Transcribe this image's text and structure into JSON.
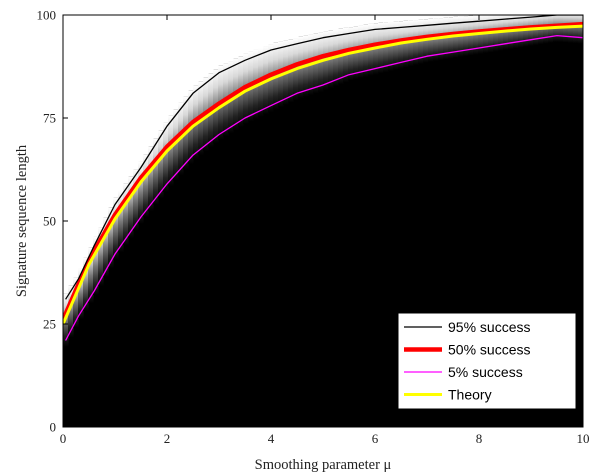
{
  "chart_data": {
    "type": "heatmap",
    "xlabel": "Smoothing parameter μ",
    "ylabel": "Signature sequence length",
    "xlim": [
      0,
      10
    ],
    "ylim": [
      0,
      100
    ],
    "xticks": [
      "0",
      "2",
      "4",
      "6",
      "8",
      "10"
    ],
    "yticks": [
      "0",
      "25",
      "50",
      "75",
      "100"
    ],
    "grid": false,
    "legend_position": "bottom-right",
    "background_color": "#000000",
    "series": [
      {
        "name": "95% success",
        "type": "line",
        "color": "#000000",
        "x": [
          0.05,
          0.3,
          0.6,
          1.0,
          1.5,
          2.0,
          2.5,
          3.0,
          3.5,
          4.0,
          4.5,
          5.0,
          5.5,
          6.0,
          6.5,
          7.0,
          7.5,
          8.0,
          8.5,
          9.0,
          9.5,
          10.0
        ],
        "y": [
          31,
          36,
          44,
          54,
          63,
          73,
          81,
          86,
          89,
          91.5,
          93,
          94.5,
          95.5,
          96.5,
          97,
          97.5,
          98,
          98.5,
          99,
          99.5,
          100,
          100
        ]
      },
      {
        "name": "50% success",
        "type": "line",
        "color": "#ff0000",
        "x": [
          0.0,
          0.5,
          1.0,
          1.5,
          2.0,
          2.5,
          3.0,
          3.5,
          4.0,
          4.5,
          5.0,
          5.5,
          6.0,
          6.5,
          7.0,
          7.5,
          8.0,
          8.5,
          9.0,
          9.5,
          10.0
        ],
        "y": [
          26,
          40.5,
          51.5,
          60.5,
          68,
          74,
          78.5,
          82.5,
          85.5,
          88,
          90,
          91.5,
          92.8,
          93.8,
          94.7,
          95.4,
          96,
          96.5,
          97,
          97.4,
          97.8
        ]
      },
      {
        "name": "5% success",
        "type": "line",
        "color": "#ff00ff",
        "x": [
          0.05,
          0.3,
          0.6,
          1.0,
          1.5,
          2.0,
          2.5,
          3.0,
          3.5,
          4.0,
          4.5,
          5.0,
          5.5,
          6.0,
          6.5,
          7.0,
          7.5,
          8.0,
          8.5,
          9.0,
          9.5,
          10.0
        ],
        "y": [
          21,
          27,
          33,
          42,
          51,
          59,
          66,
          71,
          75,
          78,
          81,
          83,
          85.5,
          87,
          88.5,
          90,
          91,
          92,
          93,
          94,
          95,
          94.5
        ]
      },
      {
        "name": "Theory",
        "type": "line",
        "color": "#ffff00",
        "x": [
          0.0,
          0.5,
          1.0,
          1.5,
          2.0,
          2.5,
          3.0,
          3.5,
          4.0,
          4.5,
          5.0,
          5.5,
          6.0,
          6.5,
          7.0,
          7.5,
          8.0,
          8.5,
          9.0,
          9.5,
          10.0
        ],
        "y": [
          25,
          39.5,
          50.5,
          59.5,
          67,
          73,
          77.5,
          81.5,
          84.5,
          87,
          89,
          90.7,
          92,
          93.2,
          94.1,
          94.9,
          95.5,
          96.1,
          96.6,
          97,
          97.3
        ]
      }
    ]
  }
}
